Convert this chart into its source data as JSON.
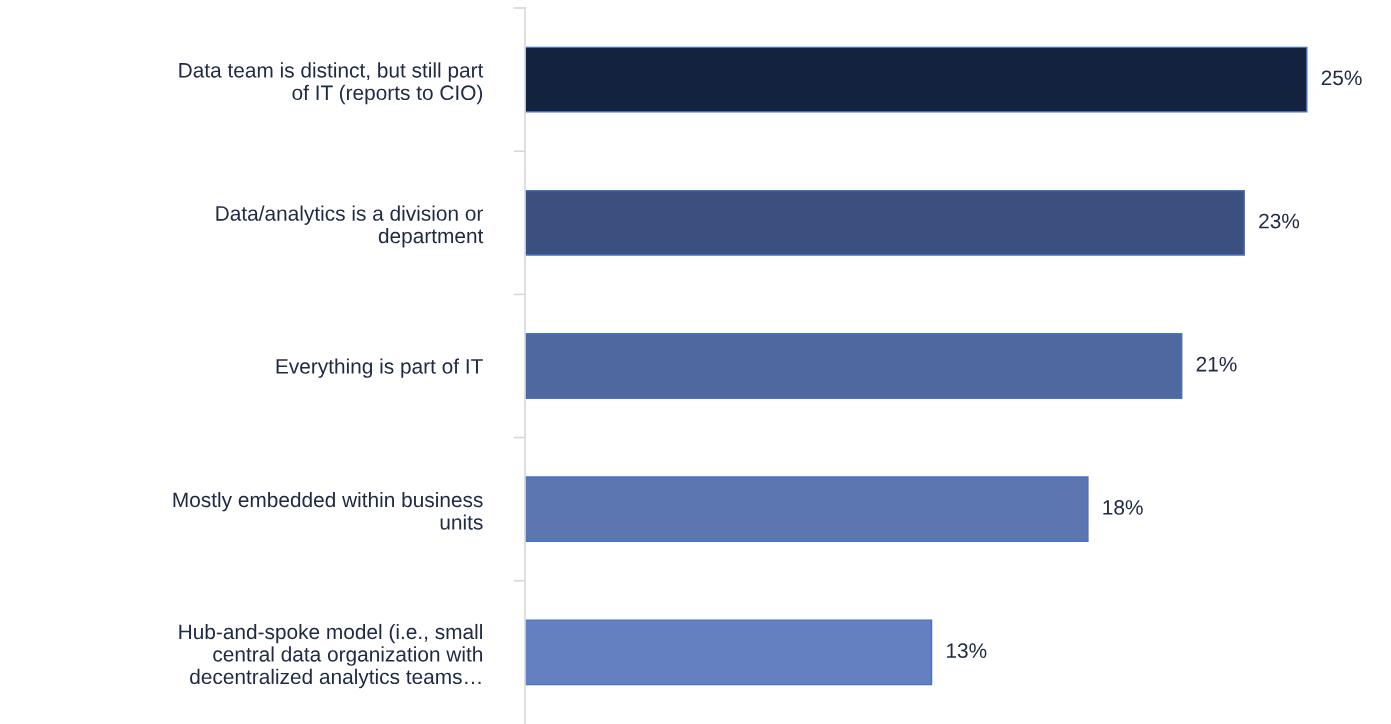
{
  "chart_data": {
    "type": "bar",
    "orientation": "horizontal",
    "categories": [
      "Data team is distinct, but still part\nof IT (reports to CIO)",
      "Data/analytics is a division or\ndepartment",
      "Everything is part of IT",
      "Mostly embedded within business\nunits",
      "Hub-and-spoke model (i.e., small\ncentral data organization with\ndecentralized analytics teams…"
    ],
    "values": [
      25,
      23,
      21,
      18,
      13
    ],
    "colors": [
      "#12223f",
      "#3c5080",
      "#4f68a0",
      "#5b76b0",
      "#6480c0"
    ],
    "value_labels": [
      "25%",
      "23%",
      "21%",
      "18%",
      "13%"
    ],
    "grid": false,
    "legend": false,
    "tick_labels": "y"
  }
}
